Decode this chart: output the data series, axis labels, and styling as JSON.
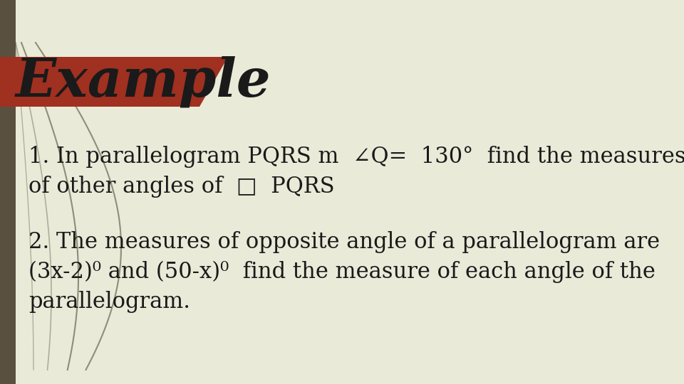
{
  "title": "Example",
  "title_color": "#1a1a1a",
  "title_fontsize": 54,
  "title_style": "italic",
  "title_weight": "bold",
  "title_font": "serif",
  "background_color": "#E9EAD8",
  "red_shape_color": "#A03020",
  "left_border_color": "#5A5040",
  "line1_text": "1. In parallelogram PQRS m  ∠Q=  130°  find the measures",
  "line2_text": "of other angles of  □  PQRS",
  "line3_text": "2. The measures of opposite angle of a parallelogram are",
  "line4_text": "(3x-2)⁰ and (50-x)⁰  find the measure of each angle of the",
  "line5_text": "parallelogram.",
  "body_fontsize": 22,
  "body_color": "#1a1a1a",
  "body_font": "serif",
  "curve_color1": "#7A7660",
  "curve_color2": "#6B6550",
  "curve_color3": "#8A8470"
}
